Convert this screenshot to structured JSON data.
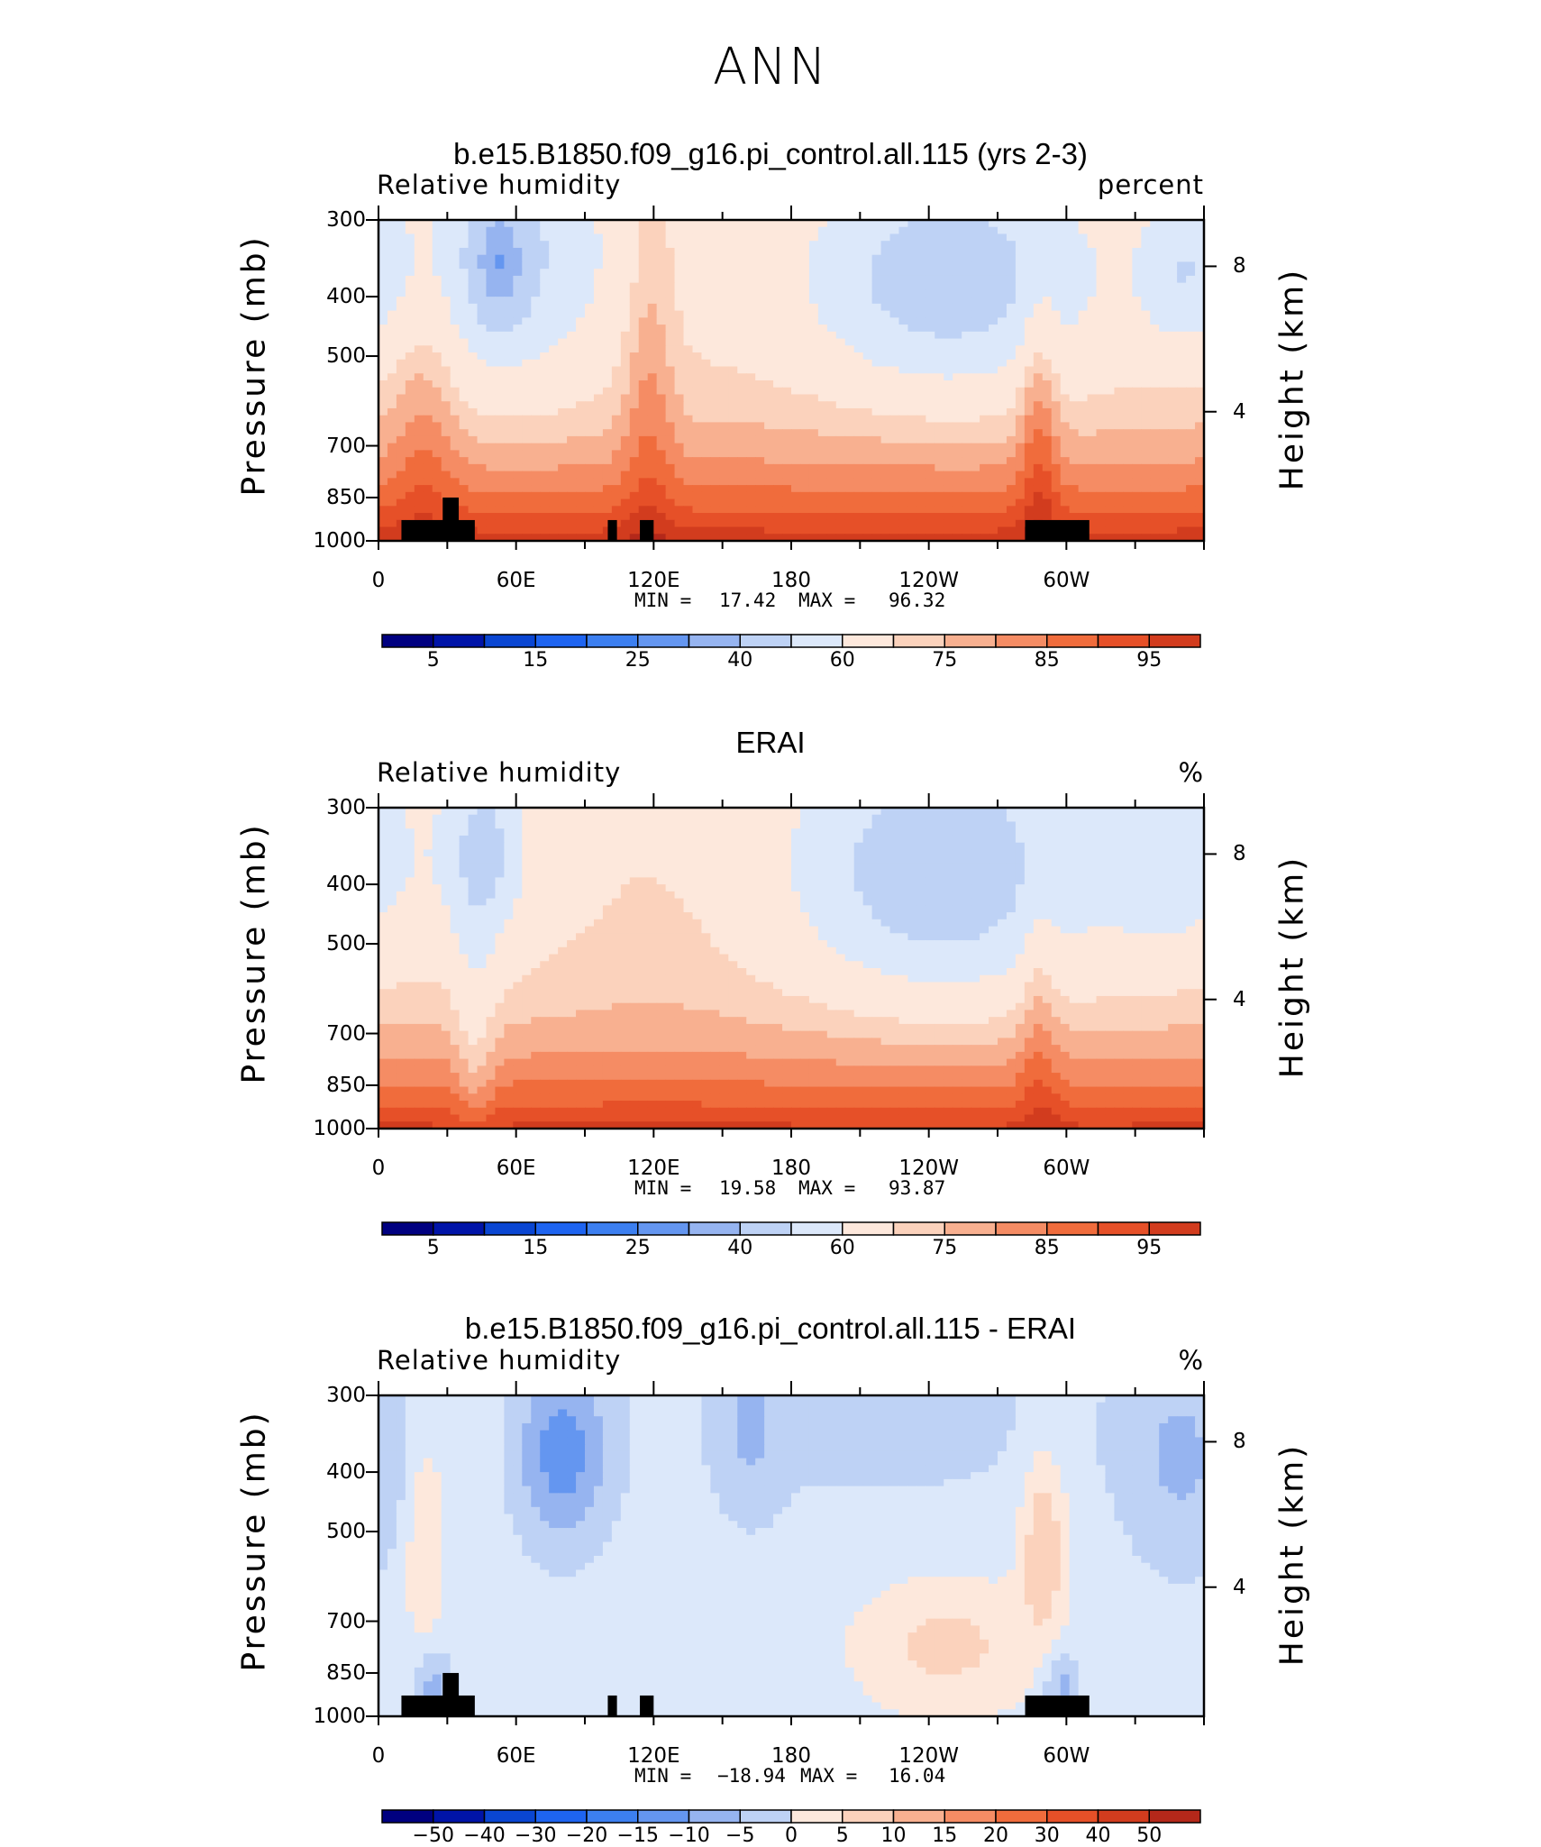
{
  "figure_title": "ANN",
  "colors": {
    "rh_levels_colors": [
      "#000080",
      "#0014a8",
      "#0a46d2",
      "#1e64f0",
      "#3c7ff0",
      "#6496f0",
      "#96b4f0",
      "#bed2f5",
      "#dce8fa",
      "#fde8dc",
      "#fbd2bc",
      "#f8b090",
      "#f58c64",
      "#f06c3c",
      "#e65028",
      "#d23c1e",
      "#b4281a",
      "#8c1414",
      "#6e0a0a"
    ],
    "diff_levels_colors": [
      "#000080",
      "#0014a8",
      "#0a46d2",
      "#1e64f0",
      "#3c7ff0",
      "#6496f0",
      "#96b4f0",
      "#bed2f5",
      "#dce8fa",
      "#fde8dc",
      "#fbd2bc",
      "#f8b090",
      "#f58c64",
      "#f06c3c",
      "#e65028",
      "#d23c1e",
      "#b4281a",
      "#8c1414",
      "#6e0a0a"
    ],
    "land_mask": "#000000"
  },
  "chart_data": [
    {
      "type": "heatmap",
      "title": "b.e15.B1850.f09_g16.pi_control.all.115 (yrs 2-3)",
      "left_label": "Relative humidity",
      "right_label": "percent",
      "ylabel": "Pressure (mb)",
      "ylabel_right": "Height (km)",
      "xticks": [
        "0",
        "60E",
        "120E",
        "180",
        "120W",
        "60W"
      ],
      "yticks": [
        "300",
        "400",
        "500",
        "700",
        "850",
        "1000"
      ],
      "yticks_right": [
        "8",
        "4"
      ],
      "xlim": [
        0,
        360
      ],
      "ylim": [
        1000,
        300
      ],
      "y_scale": "log",
      "min_label": "MIN =",
      "min_value": "17.42",
      "max_label": "MAX =",
      "max_value": "96.32",
      "colorbar_labels": [
        "5",
        "15",
        "25",
        "40",
        "60",
        "75",
        "85",
        "95"
      ],
      "field": "model",
      "land_blocks": [
        {
          "lon": [
            10,
            30
          ],
          "p": [
            1000,
            925
          ]
        },
        {
          "lon": [
            28,
            35
          ],
          "p": [
            1000,
            850
          ]
        },
        {
          "lon": [
            30,
            42
          ],
          "p": [
            1000,
            925
          ]
        },
        {
          "lon": [
            100,
            104
          ],
          "p": [
            1000,
            925
          ]
        },
        {
          "lon": [
            114,
            120
          ],
          "p": [
            1000,
            925
          ]
        },
        {
          "lon": [
            282,
            310
          ],
          "p": [
            1000,
            925
          ]
        }
      ]
    },
    {
      "type": "heatmap",
      "title": "ERAI",
      "left_label": "Relative humidity",
      "right_label": "%",
      "ylabel": "Pressure (mb)",
      "ylabel_right": "Height (km)",
      "xticks": [
        "0",
        "60E",
        "120E",
        "180",
        "120W",
        "60W"
      ],
      "yticks": [
        "300",
        "400",
        "500",
        "700",
        "850",
        "1000"
      ],
      "yticks_right": [
        "8",
        "4"
      ],
      "xlim": [
        0,
        360
      ],
      "ylim": [
        1000,
        300
      ],
      "y_scale": "log",
      "min_label": "MIN =",
      "min_value": "19.58",
      "max_label": "MAX =",
      "max_value": "93.87",
      "colorbar_labels": [
        "5",
        "15",
        "25",
        "40",
        "60",
        "75",
        "85",
        "95"
      ],
      "field": "obs",
      "land_blocks": []
    },
    {
      "type": "heatmap",
      "title": "b.e15.B1850.f09_g16.pi_control.all.115 - ERAI",
      "left_label": "Relative humidity",
      "right_label": "%",
      "ylabel": "Pressure (mb)",
      "ylabel_right": "Height (km)",
      "xticks": [
        "0",
        "60E",
        "120E",
        "180",
        "120W",
        "60W"
      ],
      "yticks": [
        "300",
        "400",
        "500",
        "700",
        "850",
        "1000"
      ],
      "yticks_right": [
        "8",
        "4"
      ],
      "xlim": [
        0,
        360
      ],
      "ylim": [
        1000,
        300
      ],
      "y_scale": "log",
      "min_label": "MIN =",
      "min_value": "−18.94",
      "max_label": "MAX =",
      "max_value": "16.04",
      "colorbar_labels": [
        "−50",
        "−40",
        "−30",
        "−20",
        "−15",
        "−10",
        "−5",
        "0",
        "5",
        "10",
        "15",
        "20",
        "30",
        "40",
        "50"
      ],
      "field": "diff",
      "land_blocks": [
        {
          "lon": [
            10,
            30
          ],
          "p": [
            1000,
            925
          ]
        },
        {
          "lon": [
            28,
            35
          ],
          "p": [
            1000,
            850
          ]
        },
        {
          "lon": [
            30,
            42
          ],
          "p": [
            1000,
            925
          ]
        },
        {
          "lon": [
            100,
            104
          ],
          "p": [
            1000,
            925
          ]
        },
        {
          "lon": [
            114,
            120
          ],
          "p": [
            1000,
            925
          ]
        },
        {
          "lon": [
            282,
            310
          ],
          "p": [
            1000,
            925
          ]
        }
      ]
    }
  ]
}
